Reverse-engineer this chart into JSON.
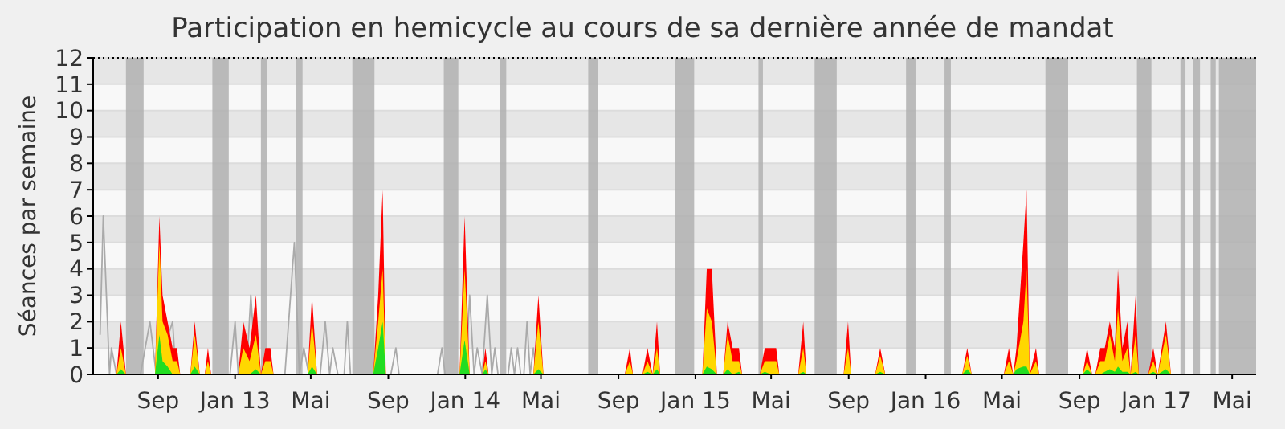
{
  "chart_data": {
    "type": "area",
    "title": "Participation en hemicycle au cours de sa dernière année de mandat",
    "ylabel": "Séances par semaine",
    "xlim": [
      "2012-05-21",
      "2017-06-08"
    ],
    "ylim": [
      0,
      12
    ],
    "yticks": [
      0,
      1,
      2,
      3,
      4,
      5,
      6,
      7,
      8,
      9,
      10,
      11,
      12
    ],
    "xticks": [
      {
        "value": "2012-09-01",
        "label": "Sep"
      },
      {
        "value": "2013-01-01",
        "label": "Jan 13"
      },
      {
        "value": "2013-05-01",
        "label": "Mai"
      },
      {
        "value": "2013-09-01",
        "label": "Sep"
      },
      {
        "value": "2014-01-01",
        "label": "Jan 14"
      },
      {
        "value": "2014-05-01",
        "label": "Mai"
      },
      {
        "value": "2014-09-01",
        "label": "Sep"
      },
      {
        "value": "2015-01-01",
        "label": "Jan 15"
      },
      {
        "value": "2015-05-01",
        "label": "Mai"
      },
      {
        "value": "2015-09-01",
        "label": "Sep"
      },
      {
        "value": "2016-01-01",
        "label": "Jan 16"
      },
      {
        "value": "2016-05-01",
        "label": "Mai"
      },
      {
        "value": "2016-09-01",
        "label": "Sep"
      },
      {
        "value": "2017-01-01",
        "label": "Jan 17"
      },
      {
        "value": "2017-05-01",
        "label": "Mai"
      }
    ],
    "grid": "y",
    "x": [
      "2012-05-21",
      "2012-06-27",
      "2012-07-04",
      "2012-07-12",
      "2012-08-27",
      "2012-09-03",
      "2012-09-08",
      "2012-09-16",
      "2012-09-24",
      "2012-10-01",
      "2012-10-06",
      "2012-10-22",
      "2012-10-29",
      "2012-11-06",
      "2012-11-14",
      "2012-11-19",
      "2012-11-24",
      "2013-01-06",
      "2013-01-14",
      "2013-01-24",
      "2013-02-03",
      "2013-02-11",
      "2013-02-18",
      "2013-02-26",
      "2013-03-03",
      "2013-04-26",
      "2013-05-03",
      "2013-05-11",
      "2013-08-08",
      "2013-08-16",
      "2013-08-23",
      "2013-08-28",
      "2013-12-23",
      "2013-12-31",
      "2014-01-08",
      "2014-01-28",
      "2014-02-02",
      "2014-02-07",
      "2014-04-19",
      "2014-04-27",
      "2014-05-05",
      "2014-09-11",
      "2014-09-19",
      "2014-09-24",
      "2014-10-09",
      "2014-10-17",
      "2014-10-25",
      "2014-11-01",
      "2014-11-06",
      "2015-01-12",
      "2015-01-19",
      "2015-01-27",
      "2015-02-04",
      "2015-02-14",
      "2015-02-21",
      "2015-03-01",
      "2015-03-11",
      "2015-03-16",
      "2015-04-13",
      "2015-04-21",
      "2015-05-01",
      "2015-05-09",
      "2015-05-14",
      "2015-06-13",
      "2015-06-21",
      "2015-06-26",
      "2015-08-24",
      "2015-08-31",
      "2015-09-05",
      "2015-10-13",
      "2015-10-21",
      "2015-10-29",
      "2016-02-28",
      "2016-03-07",
      "2016-03-14",
      "2016-05-04",
      "2016-05-12",
      "2016-05-19",
      "2016-05-24",
      "2016-06-04",
      "2016-06-09",
      "2016-06-14",
      "2016-06-24",
      "2016-06-29",
      "2016-09-06",
      "2016-09-13",
      "2016-09-21",
      "2016-09-26",
      "2016-10-04",
      "2016-10-11",
      "2016-10-19",
      "2016-10-27",
      "2016-11-01",
      "2016-11-08",
      "2016-11-16",
      "2016-11-21",
      "2016-11-29",
      "2016-12-04",
      "2016-12-19",
      "2016-12-27",
      "2017-01-03",
      "2017-01-16",
      "2017-01-24",
      "2017-06-08"
    ],
    "series": [
      {
        "type": "line",
        "color": "#aaaaaa",
        "x": [
          "2012-06-01",
          "2012-06-06",
          "2012-06-16",
          "2012-06-19",
          "2012-06-27",
          "2012-08-04",
          "2012-08-19",
          "2012-08-29",
          "2012-09-24",
          "2012-09-29",
          "2012-12-24",
          "2013-01-01",
          "2013-01-06",
          "2013-01-19",
          "2013-01-26",
          "2013-02-03",
          "2013-03-21",
          "2013-04-05",
          "2013-04-13",
          "2013-04-20",
          "2013-04-28",
          "2013-05-16",
          "2013-05-24",
          "2013-05-31",
          "2013-06-05",
          "2013-06-13",
          "2013-06-23",
          "2013-06-28",
          "2013-07-03",
          "2013-09-05",
          "2013-09-13",
          "2013-09-18",
          "2013-11-18",
          "2013-11-25",
          "2013-11-30",
          "2014-01-02",
          "2014-01-08",
          "2014-01-15",
          "2014-01-20",
          "2014-01-28",
          "2014-02-05",
          "2014-02-12",
          "2014-02-17",
          "2014-02-22",
          "2014-03-10",
          "2014-03-15",
          "2014-03-20",
          "2014-03-25",
          "2014-03-30",
          "2014-04-04",
          "2014-04-09",
          "2014-04-14",
          "2014-04-19",
          "2014-04-24",
          "2017-06-08"
        ],
        "values": [
          1.5,
          6,
          0,
          1,
          0,
          0,
          2,
          0,
          2,
          0,
          0,
          2,
          0,
          0,
          3,
          0,
          0,
          5,
          0,
          1,
          0,
          0,
          2,
          0,
          1,
          0,
          0,
          2,
          0,
          0,
          1,
          0,
          0,
          1,
          0,
          0,
          3,
          0,
          1,
          0,
          3,
          0,
          1,
          0,
          0,
          1,
          0,
          1,
          0,
          0,
          2,
          0,
          1,
          0,
          0
        ]
      },
      {
        "color": "#ff0000",
        "values": [
          0,
          0,
          2,
          0,
          0,
          6,
          3,
          2,
          1,
          1,
          0,
          0,
          2,
          0,
          0,
          1,
          0,
          0,
          2,
          1,
          3,
          0,
          1,
          1,
          0,
          0,
          3,
          0,
          0,
          3,
          7,
          0,
          0,
          6,
          0,
          0,
          1,
          0,
          0,
          3,
          0,
          0,
          1,
          0,
          0,
          1,
          0,
          2,
          0,
          0,
          4,
          4,
          0,
          0,
          2,
          1,
          1,
          0,
          0,
          1,
          1,
          1,
          0,
          0,
          2,
          0,
          0,
          2,
          0,
          0,
          1,
          0,
          0,
          1,
          0,
          0,
          1,
          0,
          1,
          5,
          7,
          0,
          1,
          0,
          0,
          1,
          0,
          0,
          1,
          1,
          2,
          1,
          4,
          1,
          2,
          0,
          3,
          0,
          0,
          1,
          0,
          2,
          0,
          0
        ]
      },
      {
        "color": "#ffd700",
        "values": [
          0,
          0,
          1,
          0,
          0,
          5,
          2,
          1.5,
          0.5,
          0.5,
          0,
          0,
          1.5,
          0,
          0,
          0.5,
          0,
          0,
          1,
          0.5,
          1.5,
          0,
          0.5,
          0.5,
          0,
          0,
          2,
          0,
          0,
          2,
          4,
          0,
          0,
          4,
          0,
          0,
          0.5,
          0,
          0,
          2,
          0,
          0,
          0.5,
          0,
          0,
          0.5,
          0,
          1,
          0,
          0,
          2.5,
          2,
          0,
          0,
          1.5,
          0.5,
          0.5,
          0,
          0,
          0.5,
          0.5,
          0.5,
          0,
          0,
          1,
          0,
          0,
          1,
          0,
          0,
          0.7,
          0,
          0,
          0.7,
          0,
          0,
          0.5,
          0,
          0.5,
          2,
          4,
          0,
          0.5,
          0,
          0,
          0.5,
          0,
          0,
          0.5,
          0.5,
          1.5,
          0.5,
          2.5,
          0.5,
          1,
          0,
          1.5,
          0,
          0,
          0.5,
          0,
          1.5,
          0,
          0
        ]
      },
      {
        "color": "#22dd22",
        "values": [
          0,
          0,
          0.2,
          0,
          0,
          1.5,
          0.5,
          0.3,
          0,
          0,
          0,
          0,
          0.3,
          0,
          0,
          0,
          0,
          0,
          0,
          0,
          0.2,
          0,
          0,
          0,
          0,
          0,
          0.3,
          0,
          0,
          1,
          2,
          0,
          0,
          1.3,
          0,
          0,
          0.2,
          0,
          0,
          0.2,
          0,
          0,
          0,
          0,
          0,
          0.1,
          0,
          0.2,
          0,
          0,
          0.3,
          0.2,
          0,
          0,
          0.2,
          0,
          0.1,
          0,
          0,
          0.1,
          0,
          0,
          0,
          0,
          0.1,
          0,
          0,
          0,
          0,
          0,
          0.1,
          0,
          0,
          0.2,
          0,
          0,
          0,
          0,
          0.2,
          0.3,
          0.3,
          0,
          0,
          0,
          0,
          0.2,
          0,
          0,
          0,
          0.1,
          0.2,
          0.1,
          0.3,
          0.1,
          0.1,
          0,
          0.1,
          0,
          0,
          0.1,
          0,
          0.2,
          0,
          0
        ]
      }
    ],
    "bands": [
      {
        "axis": "y",
        "from": 1,
        "to": 2,
        "color": "#e6e6e6"
      },
      {
        "axis": "y",
        "from": 3,
        "to": 4,
        "color": "#e6e6e6"
      },
      {
        "axis": "y",
        "from": 5,
        "to": 6,
        "color": "#e6e6e6"
      },
      {
        "axis": "y",
        "from": 7,
        "to": 8,
        "color": "#e6e6e6"
      },
      {
        "axis": "y",
        "from": 9,
        "to": 10,
        "color": "#e6e6e6"
      },
      {
        "axis": "y",
        "from": 11,
        "to": 12,
        "color": "#e6e6e6"
      },
      {
        "axis": "x",
        "from": "2012-07-12",
        "to": "2012-08-09",
        "color": "#b0b0b0"
      },
      {
        "axis": "x",
        "from": "2012-11-26",
        "to": "2012-12-22",
        "color": "#b0b0b0"
      },
      {
        "axis": "x",
        "from": "2013-02-11",
        "to": "2013-02-21",
        "color": "#b0b0b0"
      },
      {
        "axis": "x",
        "from": "2013-04-08",
        "to": "2013-04-18",
        "color": "#b0b0b0"
      },
      {
        "axis": "x",
        "from": "2013-07-06",
        "to": "2013-08-10",
        "color": "#b0b0b0"
      },
      {
        "axis": "x",
        "from": "2013-11-28",
        "to": "2013-12-21",
        "color": "#b0b0b0"
      },
      {
        "axis": "x",
        "from": "2014-02-25",
        "to": "2014-03-07",
        "color": "#b0b0b0"
      },
      {
        "axis": "x",
        "from": "2014-07-15",
        "to": "2014-07-30",
        "color": "#b0b0b0"
      },
      {
        "axis": "x",
        "from": "2014-11-29",
        "to": "2014-12-30",
        "color": "#b0b0b0"
      },
      {
        "axis": "x",
        "from": "2015-04-11",
        "to": "2015-04-18",
        "color": "#b0b0b0"
      },
      {
        "axis": "x",
        "from": "2015-07-09",
        "to": "2015-08-13",
        "color": "#b0b0b0"
      },
      {
        "axis": "x",
        "from": "2015-12-01",
        "to": "2015-12-16",
        "color": "#b0b0b0"
      },
      {
        "axis": "x",
        "from": "2016-01-31",
        "to": "2016-02-10",
        "color": "#b0b0b0"
      },
      {
        "axis": "x",
        "from": "2016-07-09",
        "to": "2016-08-14",
        "color": "#b0b0b0"
      },
      {
        "axis": "x",
        "from": "2016-12-01",
        "to": "2016-12-24",
        "color": "#b0b0b0"
      },
      {
        "axis": "x",
        "from": "2017-02-08",
        "to": "2017-02-16",
        "color": "#b0b0b0"
      },
      {
        "axis": "x",
        "from": "2017-02-28",
        "to": "2017-03-11",
        "color": "#b0b0b0"
      },
      {
        "axis": "x",
        "from": "2017-03-28",
        "to": "2017-04-05",
        "color": "#b0b0b0"
      },
      {
        "axis": "x",
        "from": "2017-04-10",
        "to": "2017-06-08",
        "color": "#b0b0b0"
      }
    ]
  }
}
